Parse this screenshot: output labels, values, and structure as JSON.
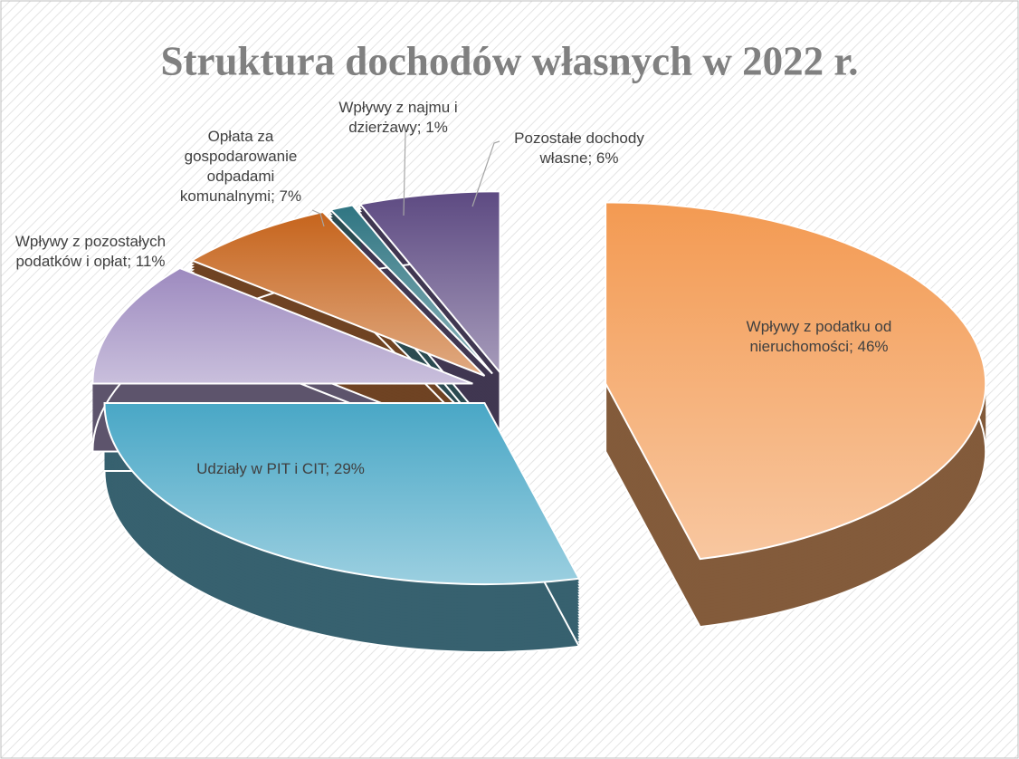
{
  "chart_data": {
    "type": "pie3d",
    "title": "Struktura dochodów własnych w 2022 r.",
    "categories": [
      "Wpływy z podatku od nieruchomości",
      "Udziały w PIT i CIT",
      "Wpływy z pozostałych podatków i opłat",
      "Opłata za gospodarowanie odpadami komunalnymi",
      "Wpływy z najmu i dzierżawy",
      "Pozostałe dochody własne"
    ],
    "values": [
      46,
      29,
      11,
      7,
      1,
      6
    ],
    "value_labels": [
      "46%",
      "29%",
      "11%",
      "7%",
      "1%",
      "6%"
    ],
    "label_separator": "; ",
    "colors": [
      "#f39a52",
      "#49a7c6",
      "#9d8abf",
      "#c6641c",
      "#2f7582",
      "#5d4a82"
    ]
  }
}
